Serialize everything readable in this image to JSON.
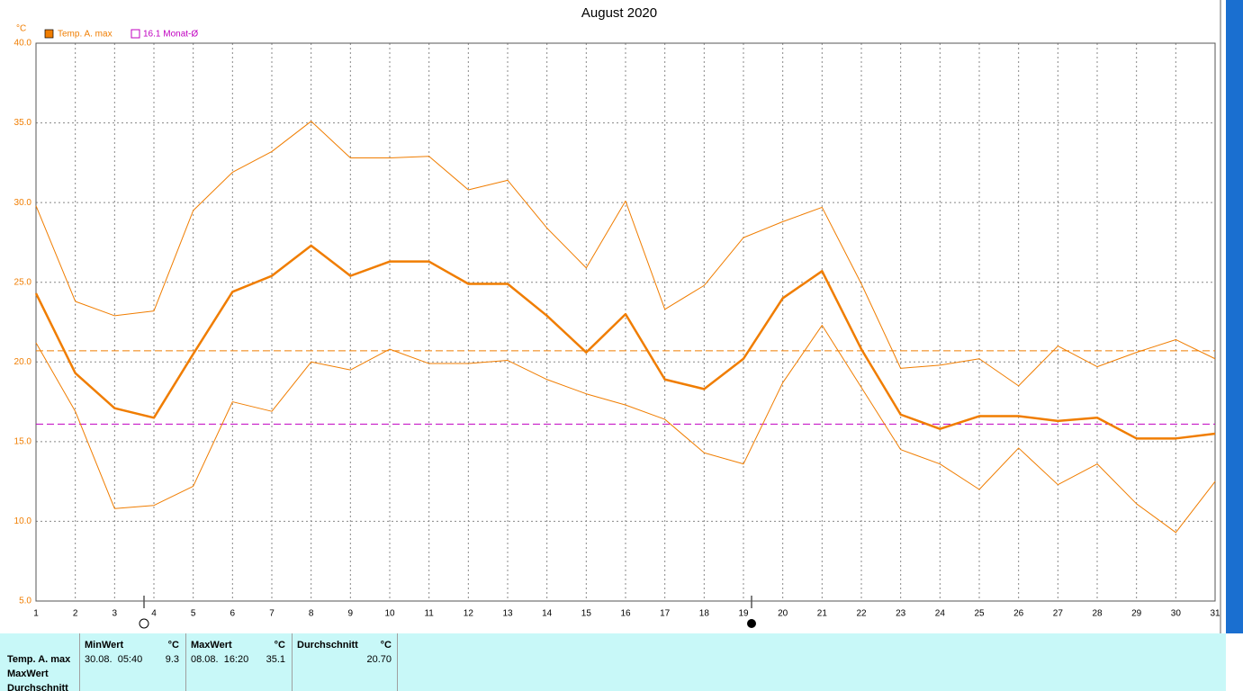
{
  "chart_data": {
    "type": "line",
    "title": "August 2020",
    "y_unit": "°C",
    "x": [
      1,
      2,
      3,
      4,
      5,
      6,
      7,
      8,
      9,
      10,
      11,
      12,
      13,
      14,
      15,
      16,
      17,
      18,
      19,
      20,
      21,
      22,
      23,
      24,
      25,
      26,
      27,
      28,
      29,
      30,
      31
    ],
    "xlim": [
      1,
      31
    ],
    "xticks": [
      1,
      2,
      3,
      4,
      5,
      6,
      7,
      8,
      9,
      10,
      11,
      12,
      13,
      14,
      15,
      16,
      17,
      18,
      19,
      20,
      21,
      22,
      23,
      24,
      25,
      26,
      27,
      28,
      29,
      30,
      31
    ],
    "ylim": [
      5,
      40
    ],
    "yticks": [
      {
        "value": 5,
        "label": "5.0"
      },
      {
        "value": 10,
        "label": "10.0"
      },
      {
        "value": 15,
        "label": "15.0"
      },
      {
        "value": 20,
        "label": "20.0"
      },
      {
        "value": 25,
        "label": "25.0"
      },
      {
        "value": 30,
        "label": "30.0"
      },
      {
        "value": 35,
        "label": "35.0"
      },
      {
        "value": 40,
        "label": "40.0"
      }
    ],
    "grid": true,
    "series": [
      {
        "name": "Temp. A. max",
        "color": "#f07d00",
        "values": [
          24.3,
          19.3,
          17.1,
          16.5,
          20.5,
          24.4,
          25.4,
          27.3,
          25.4,
          26.3,
          26.3,
          24.9,
          24.9,
          22.9,
          20.6,
          23.0,
          18.9,
          18.3,
          20.2,
          24.0,
          25.7,
          20.8,
          16.7,
          15.8,
          16.6,
          16.6,
          16.3,
          16.5,
          15.2,
          15.2,
          15.5
        ]
      },
      {
        "color": "#f07d00",
        "values": [
          29.8,
          23.8,
          22.9,
          23.2,
          29.5,
          31.9,
          33.2,
          35.1,
          32.8,
          32.8,
          32.9,
          30.8,
          31.4,
          28.4,
          25.9,
          30.1,
          23.3,
          24.8,
          27.8,
          28.8,
          29.7,
          24.9,
          19.6,
          19.8,
          20.2,
          18.5,
          21.0,
          19.7,
          20.6,
          21.4,
          20.2
        ]
      },
      {
        "color": "#f07d00",
        "values": [
          21.2,
          16.9,
          10.8,
          11.0,
          12.2,
          17.5,
          16.9,
          20.0,
          19.5,
          20.8,
          19.9,
          19.9,
          20.1,
          18.9,
          18.0,
          17.3,
          16.4,
          14.3,
          13.6,
          18.7,
          22.3,
          18.4,
          14.5,
          13.6,
          12.0,
          14.6,
          12.3,
          13.6,
          11.1,
          9.3,
          12.5
        ]
      }
    ],
    "reference_lines": [
      {
        "value": 20.7,
        "color": "#f07d00"
      },
      {
        "value": 16.1,
        "color": "#c000c0",
        "label": "16.1 Monat-Ø"
      }
    ]
  },
  "stats_table": {
    "headers": [
      "MinWert",
      "°C",
      "MaxWert",
      "°C",
      "Durchschnitt",
      "°C"
    ],
    "rows": [
      [
        "Temp. A. max",
        "30.08.  05:40",
        "9.3",
        "08.08.  16:20",
        "35.1",
        "20.70"
      ],
      [
        "MaxWert"
      ],
      [
        "Durchschnitt"
      ]
    ]
  }
}
